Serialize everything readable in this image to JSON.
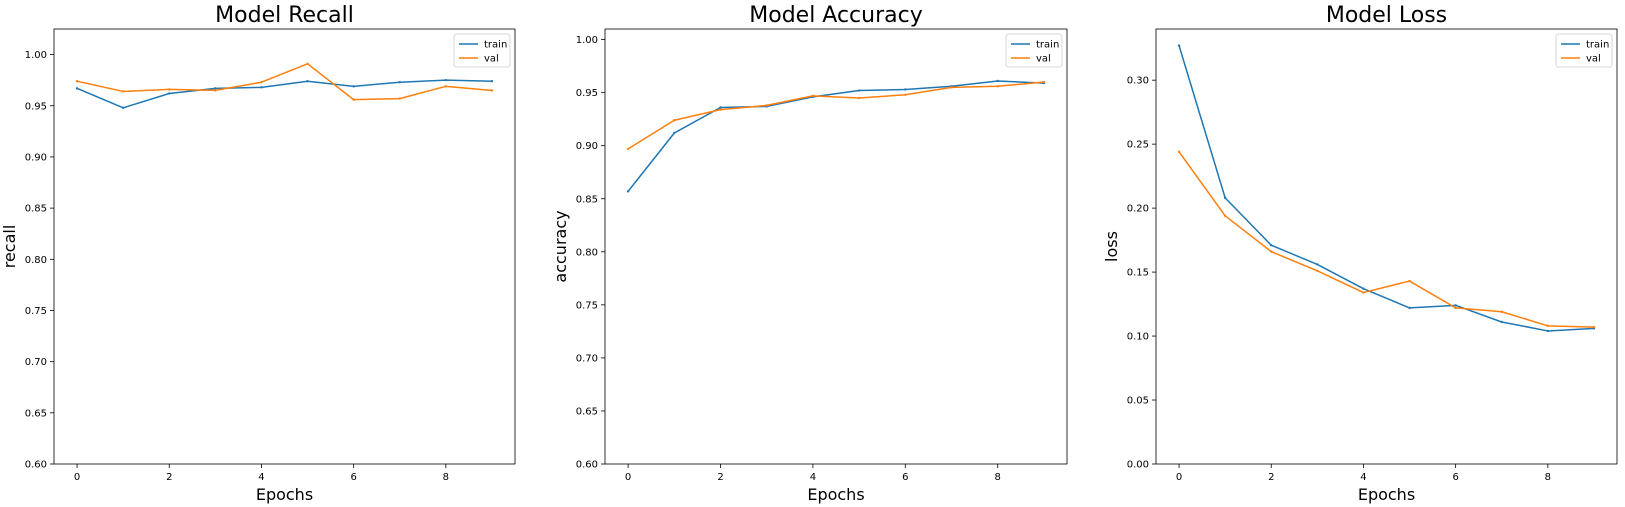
{
  "figure": {
    "background": "#ffffff"
  },
  "chart_data": [
    {
      "type": "line",
      "title": "Model Recall",
      "xlabel": "Epochs",
      "ylabel": "recall",
      "x": [
        0,
        1,
        2,
        3,
        4,
        5,
        6,
        7,
        8,
        9
      ],
      "xlim": [
        -0.5,
        9.5
      ],
      "ylim": [
        0.6,
        1.025
      ],
      "xticks": [
        0,
        2,
        4,
        6,
        8
      ],
      "xtick_labels": [
        "0",
        "2",
        "4",
        "6",
        "8"
      ],
      "yticks": [
        0.6,
        0.65,
        0.7,
        0.75,
        0.8,
        0.85,
        0.9,
        0.95,
        1.0
      ],
      "ytick_labels": [
        "0.60",
        "0.65",
        "0.70",
        "0.75",
        "0.80",
        "0.85",
        "0.90",
        "0.95",
        "1.00"
      ],
      "grid": false,
      "legend": "top-right",
      "series": [
        {
          "name": "train",
          "color": "#1f77b4",
          "values": [
            0.967,
            0.948,
            0.962,
            0.967,
            0.968,
            0.974,
            0.969,
            0.973,
            0.975,
            0.974
          ]
        },
        {
          "name": "val",
          "color": "#ff7f0e",
          "values": [
            0.974,
            0.964,
            0.966,
            0.965,
            0.973,
            0.991,
            0.956,
            0.957,
            0.969,
            0.965
          ]
        }
      ]
    },
    {
      "type": "line",
      "title": "Model Accuracy",
      "xlabel": "Epochs",
      "ylabel": "accuracy",
      "x": [
        0,
        1,
        2,
        3,
        4,
        5,
        6,
        7,
        8,
        9
      ],
      "xlim": [
        -0.5,
        9.5
      ],
      "ylim": [
        0.6,
        1.01
      ],
      "xticks": [
        0,
        2,
        4,
        6,
        8
      ],
      "xtick_labels": [
        "0",
        "2",
        "4",
        "6",
        "8"
      ],
      "yticks": [
        0.6,
        0.65,
        0.7,
        0.75,
        0.8,
        0.85,
        0.9,
        0.95,
        1.0
      ],
      "ytick_labels": [
        "0.60",
        "0.65",
        "0.70",
        "0.75",
        "0.80",
        "0.85",
        "0.90",
        "0.95",
        "1.00"
      ],
      "grid": false,
      "legend": "top-right",
      "series": [
        {
          "name": "train",
          "color": "#1f77b4",
          "values": [
            0.857,
            0.912,
            0.936,
            0.937,
            0.946,
            0.952,
            0.953,
            0.956,
            0.961,
            0.959
          ]
        },
        {
          "name": "val",
          "color": "#ff7f0e",
          "values": [
            0.897,
            0.924,
            0.934,
            0.938,
            0.947,
            0.945,
            0.948,
            0.955,
            0.956,
            0.96
          ]
        }
      ]
    },
    {
      "type": "line",
      "title": "Model Loss",
      "xlabel": "Epochs",
      "ylabel": "loss",
      "x": [
        0,
        1,
        2,
        3,
        4,
        5,
        6,
        7,
        8,
        9
      ],
      "xlim": [
        -0.5,
        9.5
      ],
      "ylim": [
        0.0,
        0.34
      ],
      "xticks": [
        0,
        2,
        4,
        6,
        8
      ],
      "xtick_labels": [
        "0",
        "2",
        "4",
        "6",
        "8"
      ],
      "yticks": [
        0.0,
        0.05,
        0.1,
        0.15,
        0.2,
        0.25,
        0.3
      ],
      "ytick_labels": [
        "0.00",
        "0.05",
        "0.10",
        "0.15",
        "0.20",
        "0.25",
        "0.30"
      ],
      "grid": false,
      "legend": "top-right",
      "series": [
        {
          "name": "train",
          "color": "#1f77b4",
          "values": [
            0.327,
            0.208,
            0.171,
            0.156,
            0.137,
            0.122,
            0.124,
            0.111,
            0.104,
            0.106
          ]
        },
        {
          "name": "val",
          "color": "#ff7f0e",
          "values": [
            0.244,
            0.194,
            0.166,
            0.151,
            0.134,
            0.143,
            0.122,
            0.119,
            0.108,
            0.107
          ]
        }
      ]
    }
  ]
}
